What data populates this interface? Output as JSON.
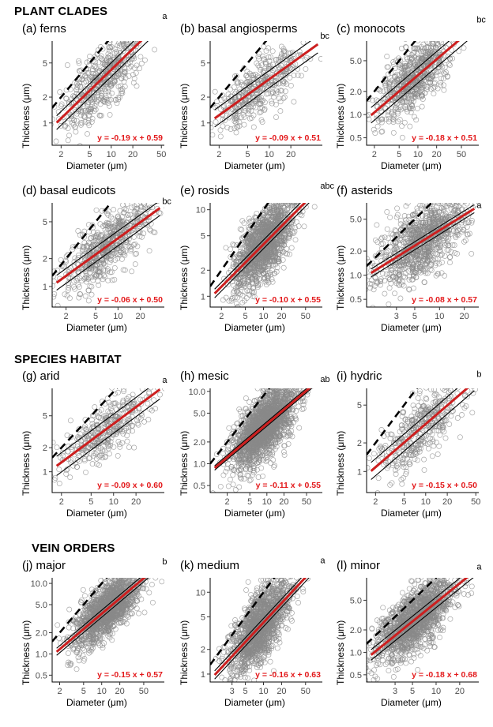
{
  "sections": [
    {
      "title": "PLANT CLADES"
    },
    {
      "title": "SPECIES HABITAT"
    },
    {
      "title": "VEIN ORDERS"
    }
  ],
  "colors": {
    "points": "#8a8a8a",
    "fit": "#cc1f1f",
    "ci": "#000000",
    "equation": "#e31a1c"
  },
  "chart_data": [
    {
      "id": "a",
      "type": "scatter",
      "title": "(a) ferns",
      "xlabel": "Diameter (μm)",
      "ylabel": "Thickness (μm)",
      "log_axes": true,
      "xlim": [
        1.5,
        55
      ],
      "ylim": [
        0.55,
        9
      ],
      "xticks": [
        2,
        5,
        10,
        20,
        50
      ],
      "xtick_labels": [
        "2",
        "5",
        "10",
        "20",
        "50"
      ],
      "yticks": [
        1,
        2,
        5
      ],
      "ytick_labels": [
        "1",
        "2",
        "5"
      ],
      "fit": {
        "slope": 0.81,
        "intercept": -0.19,
        "ci": 0.08
      },
      "equation": "y = -0.19 x + 0.59",
      "group_letter": "a",
      "reference_line": {
        "slope": 1,
        "intercept": 0
      },
      "n_points": 550,
      "center": [
        0.9,
        0.32
      ],
      "spread": [
        0.3,
        0.2
      ]
    },
    {
      "id": "b",
      "type": "scatter",
      "title": "(b) basal angiosperms",
      "xlabel": "Diameter (μm)",
      "ylabel": "Thickness (μm)",
      "log_axes": true,
      "xlim": [
        1.5,
        55
      ],
      "ylim": [
        0.55,
        9
      ],
      "xticks": [
        2,
        5,
        10,
        20
      ],
      "xtick_labels": [
        "2",
        "5",
        "10",
        "20"
      ],
      "yticks": [
        1,
        2,
        5
      ],
      "ytick_labels": [
        "1",
        "2",
        "5"
      ],
      "fit": {
        "slope": 0.6,
        "intercept": -0.09,
        "ci": 0.1
      },
      "equation": "y = -0.09 x + 0.51",
      "group_letter": "bc",
      "reference_line": {
        "slope": 1,
        "intercept": 0
      },
      "n_points": 420,
      "center": [
        0.85,
        0.37
      ],
      "spread": [
        0.3,
        0.17
      ]
    },
    {
      "id": "c",
      "type": "scatter",
      "title": "(c) monocots",
      "xlabel": "Diameter (μm)",
      "ylabel": "Thickness (μm)",
      "log_axes": true,
      "xlim": [
        1.5,
        95
      ],
      "ylim": [
        0.4,
        9
      ],
      "xticks": [
        2,
        5,
        10,
        20,
        50
      ],
      "xtick_labels": [
        "2",
        "5",
        "10",
        "20",
        "50"
      ],
      "yticks": [
        0.5,
        1,
        2,
        5
      ],
      "ytick_labels": [
        "0.5",
        "1.0",
        "2.0",
        "5.0"
      ],
      "fit": {
        "slope": 0.69,
        "intercept": -0.18,
        "ci": 0.1
      },
      "equation": "y = -0.18 x + 0.51",
      "group_letter": "bc",
      "reference_line": {
        "slope": 1,
        "intercept": 0
      },
      "n_points": 650,
      "center": [
        0.95,
        0.3
      ],
      "spread": [
        0.3,
        0.2
      ]
    },
    {
      "id": "d",
      "type": "scatter",
      "title": "(d) basal eudicots",
      "xlabel": "Diameter (μm)",
      "ylabel": "Thickness (μm)",
      "log_axes": true,
      "xlim": [
        1.3,
        42
      ],
      "ylim": [
        0.6,
        8
      ],
      "xticks": [
        2,
        5,
        10,
        20
      ],
      "xtick_labels": [
        "2",
        "5",
        "10",
        "20"
      ],
      "yticks": [
        1,
        2,
        5
      ],
      "ytick_labels": [
        "1",
        "2",
        "5"
      ],
      "fit": {
        "slope": 0.58,
        "intercept": -0.06,
        "ci": 0.08
      },
      "equation": "y = -0.06 x + 0.50",
      "group_letter": "bc",
      "reference_line": {
        "slope": 1,
        "intercept": 0
      },
      "n_points": 620,
      "center": [
        0.85,
        0.35
      ],
      "spread": [
        0.3,
        0.17
      ]
    },
    {
      "id": "e",
      "type": "scatter",
      "title": "(e) rosids",
      "xlabel": "Diameter (μm)",
      "ylabel": "Thickness (μm)",
      "log_axes": true,
      "xlim": [
        1.3,
        95
      ],
      "ylim": [
        0.75,
        12
      ],
      "xticks": [
        2,
        5,
        10,
        20,
        50
      ],
      "xtick_labels": [
        "2",
        "5",
        "10",
        "20",
        "50"
      ],
      "yticks": [
        1,
        2,
        5,
        10
      ],
      "ytick_labels": [
        "1",
        "2",
        "5",
        "10"
      ],
      "fit": {
        "slope": 0.7,
        "intercept": -0.1,
        "ci": 0.05
      },
      "equation": "y = -0.10 x + 0.55",
      "group_letter": "abc",
      "reference_line": {
        "slope": 1,
        "intercept": 0
      },
      "n_points": 1400,
      "center": [
        1.0,
        0.42
      ],
      "spread": [
        0.25,
        0.2
      ]
    },
    {
      "id": "f",
      "type": "scatter",
      "title": "(f) asterids",
      "xlabel": "Diameter (μm)",
      "ylabel": "Thickness (μm)",
      "log_axes": true,
      "xlim": [
        1.3,
        30
      ],
      "ylim": [
        0.4,
        8
      ],
      "xticks": [
        3,
        5,
        10,
        20
      ],
      "xtick_labels": [
        "3",
        "5",
        "10",
        "20"
      ],
      "yticks": [
        0.5,
        1,
        2,
        5
      ],
      "ytick_labels": [
        "0.5",
        "1.0",
        "2.0",
        "5.0"
      ],
      "fit": {
        "slope": 0.64,
        "intercept": -0.08,
        "ci": 0.05
      },
      "equation": "y = -0.08 x + 0.57",
      "group_letter": "a",
      "reference_line": {
        "slope": 1,
        "intercept": 0
      },
      "n_points": 1000,
      "center": [
        0.8,
        0.38
      ],
      "spread": [
        0.28,
        0.22
      ]
    },
    {
      "id": "g",
      "type": "scatter",
      "title": "(g) arid",
      "xlabel": "Diameter (μm)",
      "ylabel": "Thickness (μm)",
      "log_axes": true,
      "xlim": [
        1.5,
        48
      ],
      "ylim": [
        0.55,
        11
      ],
      "xticks": [
        2,
        5,
        10,
        20
      ],
      "xtick_labels": [
        "2",
        "5",
        "10",
        "20"
      ],
      "yticks": [
        1,
        2,
        5
      ],
      "ytick_labels": [
        "1",
        "2",
        "5"
      ],
      "fit": {
        "slope": 0.69,
        "intercept": -0.09,
        "ci": 0.12
      },
      "equation": "y = -0.09 x + 0.60",
      "group_letter": "a",
      "reference_line": {
        "slope": 1,
        "intercept": 0
      },
      "n_points": 380,
      "center": [
        0.9,
        0.42
      ],
      "spread": [
        0.3,
        0.17
      ]
    },
    {
      "id": "h",
      "type": "scatter",
      "title": "(h) mesic",
      "xlabel": "Diameter (μm)",
      "ylabel": "Thickness (μm)",
      "log_axes": true,
      "xlim": [
        1.0,
        95
      ],
      "ylim": [
        0.4,
        11
      ],
      "xticks": [
        2,
        5,
        10,
        20,
        50
      ],
      "xtick_labels": [
        "2",
        "5",
        "10",
        "20",
        "50"
      ],
      "yticks": [
        0.5,
        1,
        2,
        5,
        10
      ],
      "ytick_labels": [
        "0.5",
        "1.0",
        "2.0",
        "5.0",
        "10.0"
      ],
      "fit": {
        "slope": 0.66,
        "intercept": -0.11,
        "ci": 0.03
      },
      "equation": "y = -0.11 x + 0.55",
      "group_letter": "ab",
      "reference_line": {
        "slope": 1,
        "intercept": 0
      },
      "n_points": 1900,
      "center": [
        0.95,
        0.42
      ],
      "spread": [
        0.27,
        0.2
      ]
    },
    {
      "id": "i",
      "type": "scatter",
      "title": "(i) hydric",
      "xlabel": "Diameter (μm)",
      "ylabel": "Thickness (μm)",
      "log_axes": true,
      "xlim": [
        1.5,
        55
      ],
      "ylim": [
        0.6,
        7.5
      ],
      "xticks": [
        2,
        5,
        10,
        20,
        50
      ],
      "xtick_labels": [
        "2",
        "5",
        "10",
        "20",
        "50"
      ],
      "yticks": [
        1,
        2,
        5
      ],
      "ytick_labels": [
        "1",
        "2",
        "5"
      ],
      "fit": {
        "slope": 0.65,
        "intercept": -0.15,
        "ci": 0.09
      },
      "equation": "y = -0.15 x + 0.50",
      "group_letter": "b",
      "reference_line": {
        "slope": 1,
        "intercept": 0
      },
      "n_points": 420,
      "center": [
        0.95,
        0.3
      ],
      "spread": [
        0.3,
        0.17
      ]
    },
    {
      "id": "j",
      "type": "scatter",
      "title": "(j) major",
      "xlabel": "Diameter (μm)",
      "ylabel": "Thickness (μm)",
      "log_axes": true,
      "xlim": [
        1.5,
        110
      ],
      "ylim": [
        0.4,
        12
      ],
      "xticks": [
        2,
        5,
        10,
        20,
        50
      ],
      "xtick_labels": [
        "2",
        "5",
        "10",
        "20",
        "50"
      ],
      "yticks": [
        0.5,
        1,
        2,
        5,
        10
      ],
      "ytick_labels": [
        "0.5",
        "1.0",
        "2.0",
        "5.0",
        "10.0"
      ],
      "fit": {
        "slope": 0.72,
        "intercept": -0.15,
        "ci": 0.05
      },
      "equation": "y = -0.15 x + 0.57",
      "group_letter": "b",
      "reference_line": {
        "slope": 1,
        "intercept": 0
      },
      "n_points": 1500,
      "center": [
        1.1,
        0.45
      ],
      "spread": [
        0.27,
        0.18
      ]
    },
    {
      "id": "k",
      "type": "scatter",
      "title": "(k) medium",
      "xlabel": "Diameter (μm)",
      "ylabel": "Thickness (μm)",
      "log_axes": true,
      "xlim": [
        1.3,
        95
      ],
      "ylim": [
        0.8,
        15
      ],
      "xticks": [
        3,
        5,
        10,
        20,
        50
      ],
      "xtick_labels": [
        "3",
        "5",
        "10",
        "20",
        "50"
      ],
      "yticks": [
        1,
        2,
        5,
        10
      ],
      "ytick_labels": [
        "1",
        "2",
        "5",
        "10"
      ],
      "fit": {
        "slope": 0.79,
        "intercept": -0.16,
        "ci": 0.05
      },
      "equation": "y = -0.16 x + 0.63",
      "group_letter": "a",
      "reference_line": {
        "slope": 1,
        "intercept": 0
      },
      "n_points": 1500,
      "center": [
        0.95,
        0.4
      ],
      "spread": [
        0.25,
        0.2
      ]
    },
    {
      "id": "l",
      "type": "scatter",
      "title": "(l) minor",
      "xlabel": "Diameter (μm)",
      "ylabel": "Thickness (μm)",
      "log_axes": true,
      "xlim": [
        1.3,
        35
      ],
      "ylim": [
        0.4,
        10
      ],
      "xticks": [
        3,
        5,
        10,
        20
      ],
      "xtick_labels": [
        "3",
        "5",
        "10",
        "20"
      ],
      "yticks": [
        0.5,
        1,
        2,
        5
      ],
      "ytick_labels": [
        "0.5",
        "1.0",
        "2.0",
        "5.0"
      ],
      "fit": {
        "slope": 0.85,
        "intercept": -0.18,
        "ci": 0.07
      },
      "equation": "y = -0.18 x + 0.68",
      "group_letter": "a",
      "reference_line": {
        "slope": 1,
        "intercept": 0
      },
      "n_points": 1500,
      "center": [
        0.75,
        0.28
      ],
      "spread": [
        0.25,
        0.2
      ]
    }
  ]
}
